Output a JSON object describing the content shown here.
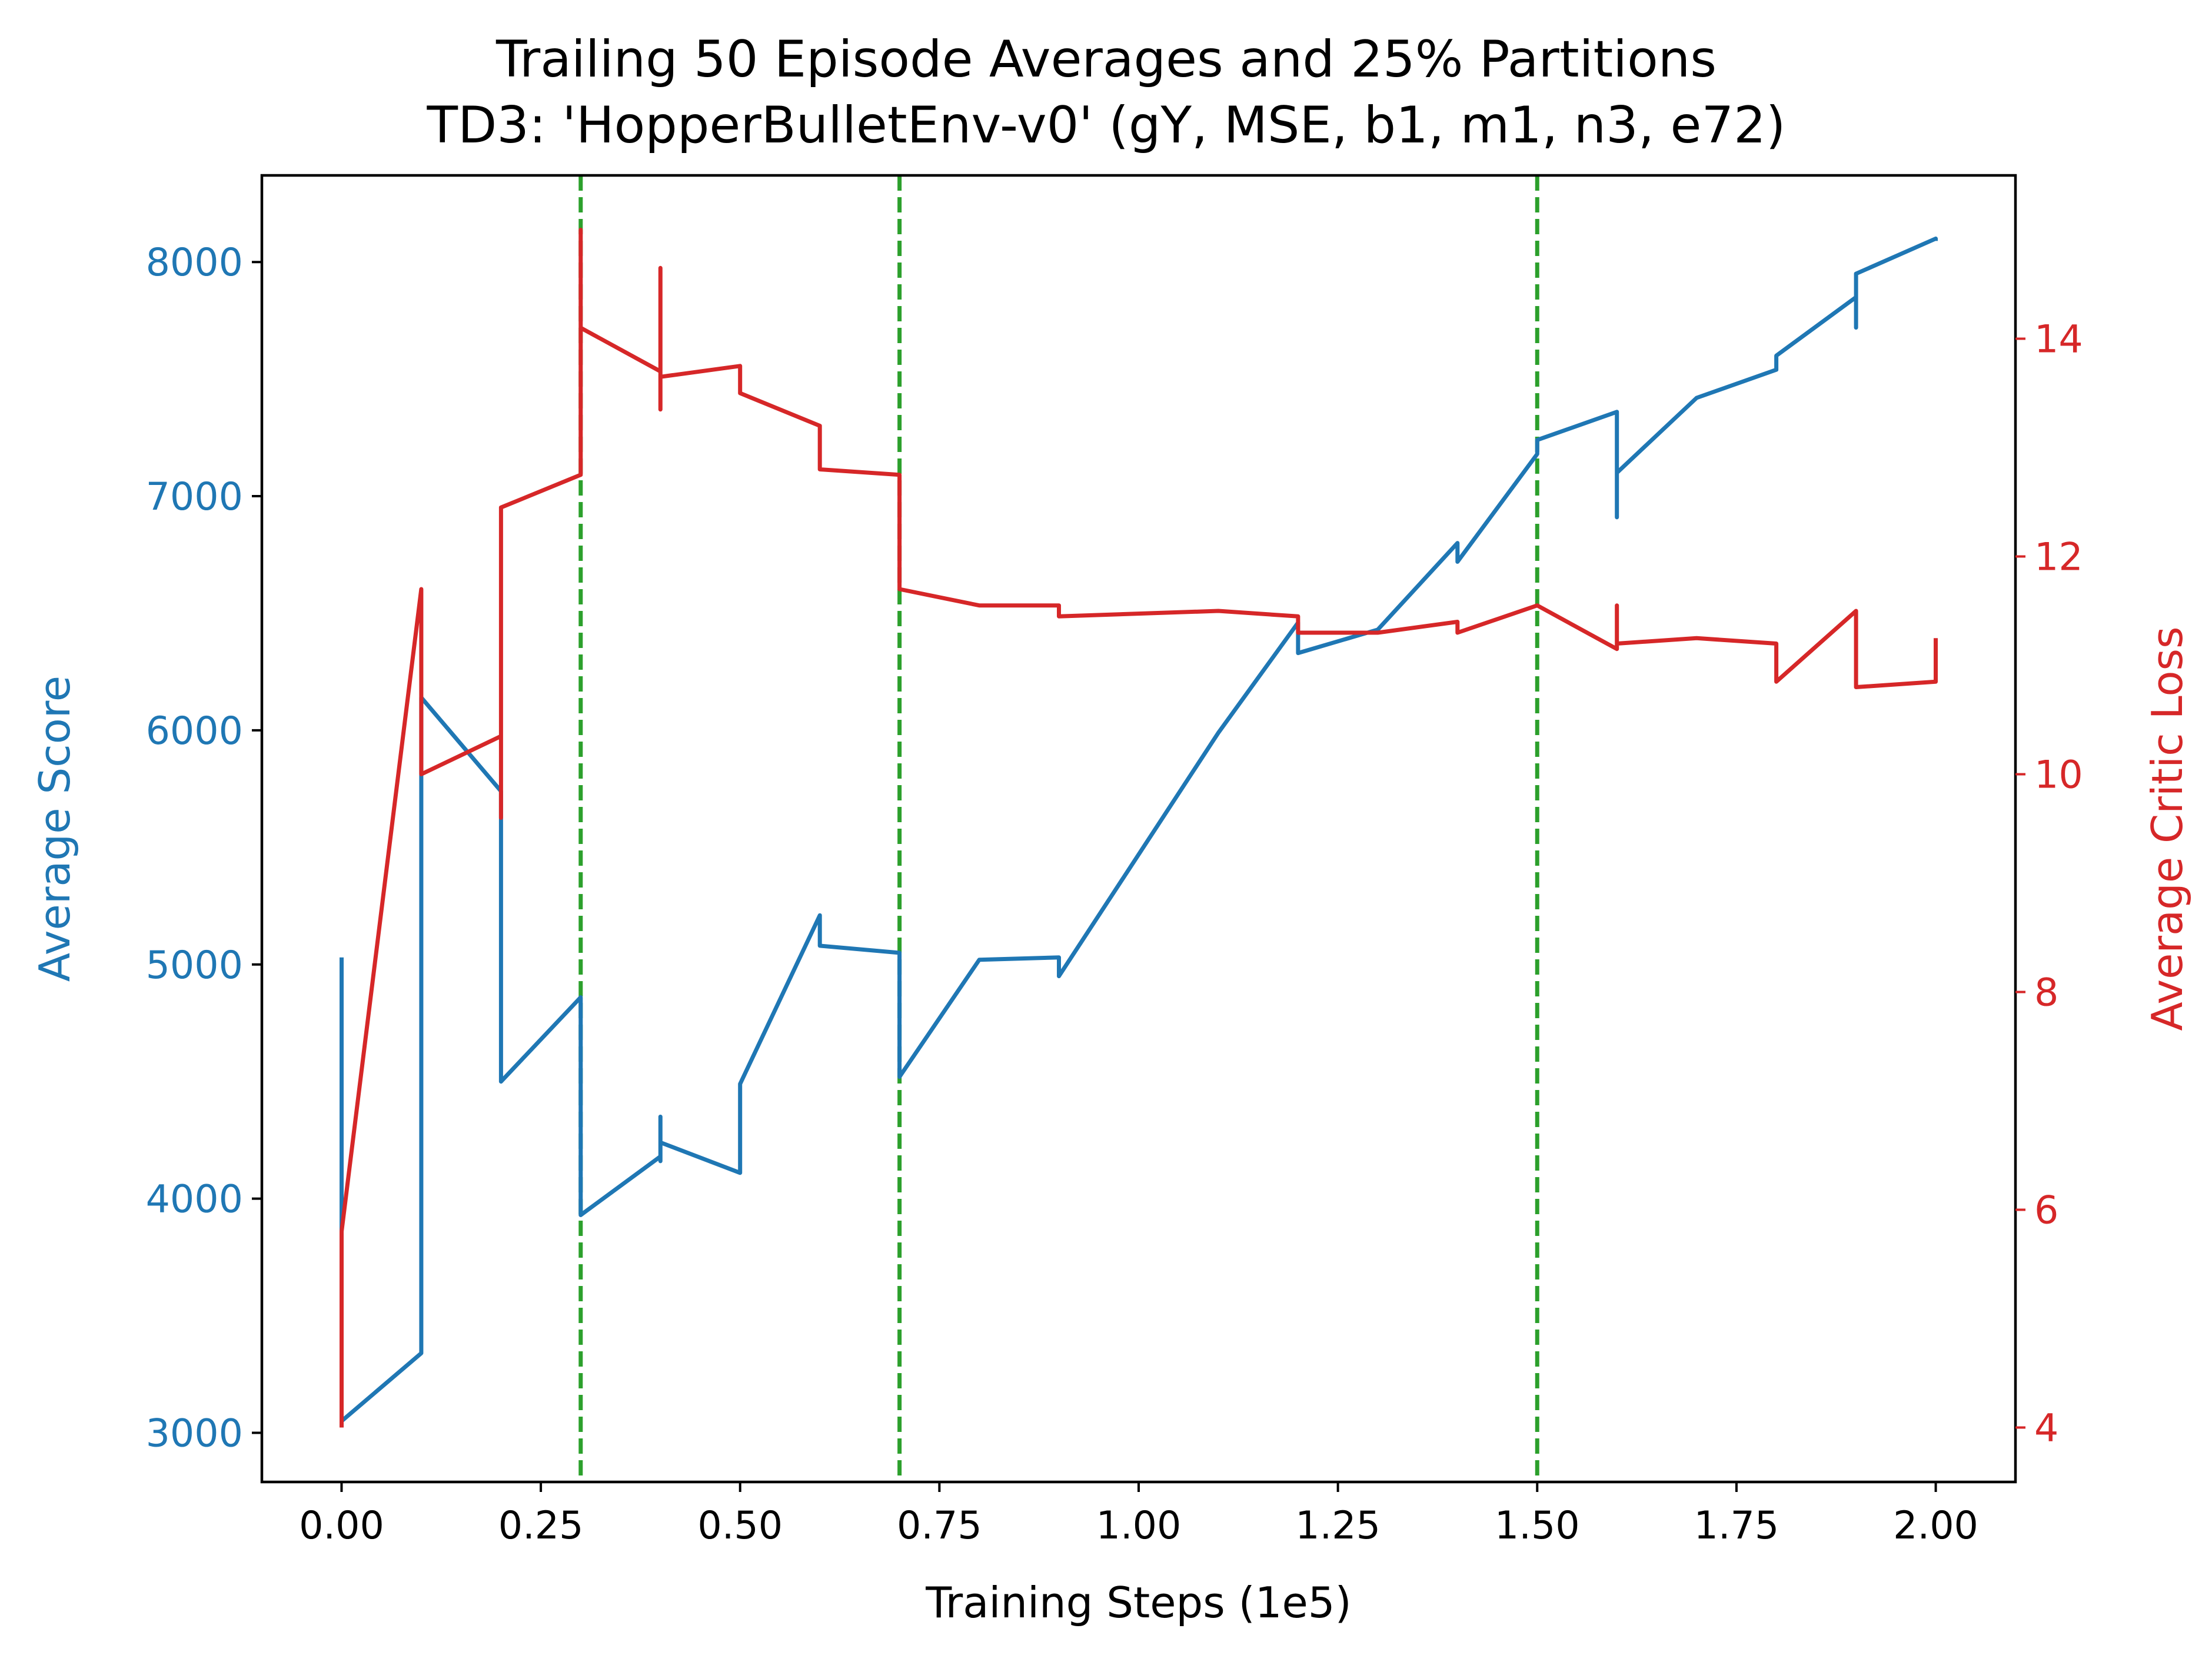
{
  "chart_data": {
    "type": "line",
    "title": "Trailing 50 Episode Averages and 25% Partitions",
    "subtitle": "TD3: 'HopperBulletEnv-v0' (gY, MSE, b1, m1, n3, e72)",
    "xlabel": "Training Steps (1e5)",
    "ylabel_left": "Average Score",
    "ylabel_right": "Average Critic Loss",
    "xlim": [
      -0.1,
      2.1
    ],
    "ylim_left": [
      2790,
      8370
    ],
    "ylim_right": [
      3.5,
      15.5
    ],
    "x_ticks": [
      "0.00",
      "0.25",
      "0.50",
      "0.75",
      "1.00",
      "1.25",
      "1.50",
      "1.75",
      "2.00"
    ],
    "y_ticks_left": [
      "3000",
      "4000",
      "5000",
      "6000",
      "7000",
      "8000"
    ],
    "y_ticks_right": [
      "4",
      "6",
      "8",
      "10",
      "12",
      "14"
    ],
    "grid": false,
    "colors": {
      "score": "#1f77b4",
      "loss": "#d62728",
      "partition": "#2ca02c",
      "axes": "#000000"
    },
    "partitions": [
      0.3,
      0.7,
      1.5
    ],
    "series": [
      {
        "axis": "left",
        "points": [
          [
            0,
            5030
          ],
          [
            0,
            3050
          ],
          [
            0.1,
            3340
          ],
          [
            0.1,
            6140
          ],
          [
            0.2,
            5740
          ],
          [
            0.2,
            5600
          ],
          [
            0.2,
            4500
          ],
          [
            0.3,
            4860
          ],
          [
            0.3,
            3930
          ],
          [
            0.4,
            4180
          ],
          [
            0.4,
            4350
          ],
          [
            0.4,
            4160
          ],
          [
            0.4,
            4240
          ],
          [
            0.5,
            4110
          ],
          [
            0.5,
            4490
          ],
          [
            0.6,
            5210
          ],
          [
            0.6,
            5080
          ],
          [
            0.7,
            5050
          ],
          [
            0.7,
            4520
          ],
          [
            0.8,
            5020
          ],
          [
            0.9,
            5030
          ],
          [
            0.9,
            4950
          ],
          [
            1.0,
            5470
          ],
          [
            1.1,
            5990
          ],
          [
            1.2,
            6460
          ],
          [
            1.2,
            6330
          ],
          [
            1.3,
            6430
          ],
          [
            1.4,
            6800
          ],
          [
            1.4,
            6720
          ],
          [
            1.5,
            7180
          ],
          [
            1.5,
            7240
          ],
          [
            1.6,
            7360
          ],
          [
            1.6,
            6910
          ],
          [
            1.6,
            7100
          ],
          [
            1.7,
            7420
          ],
          [
            1.8,
            7540
          ],
          [
            1.8,
            7600
          ],
          [
            1.9,
            7850
          ],
          [
            1.9,
            7720
          ],
          [
            1.9,
            7950
          ],
          [
            2.0,
            8100
          ],
          [
            2.0,
            8090
          ]
        ]
      },
      {
        "axis": "right",
        "points": [
          [
            0,
            4.0
          ],
          [
            0,
            5.8
          ],
          [
            0.1,
            11.7
          ],
          [
            0.1,
            10.0
          ],
          [
            0.2,
            10.35
          ],
          [
            0.2,
            9.6
          ],
          [
            0.2,
            12.45
          ],
          [
            0.3,
            12.75
          ],
          [
            0.3,
            15.0
          ],
          [
            0.3,
            14.1
          ],
          [
            0.4,
            13.7
          ],
          [
            0.4,
            14.65
          ],
          [
            0.4,
            13.35
          ],
          [
            0.4,
            13.65
          ],
          [
            0.5,
            13.75
          ],
          [
            0.5,
            13.5
          ],
          [
            0.6,
            13.2
          ],
          [
            0.6,
            12.8
          ],
          [
            0.7,
            12.75
          ],
          [
            0.7,
            12.1
          ],
          [
            0.7,
            11.7
          ],
          [
            0.8,
            11.55
          ],
          [
            0.9,
            11.55
          ],
          [
            0.9,
            11.45
          ],
          [
            1.1,
            11.5
          ],
          [
            1.2,
            11.45
          ],
          [
            1.2,
            11.3
          ],
          [
            1.3,
            11.3
          ],
          [
            1.4,
            11.4
          ],
          [
            1.4,
            11.3
          ],
          [
            1.5,
            11.55
          ],
          [
            1.6,
            11.15
          ],
          [
            1.6,
            11.55
          ],
          [
            1.6,
            11.2
          ],
          [
            1.7,
            11.25
          ],
          [
            1.8,
            11.2
          ],
          [
            1.8,
            10.85
          ],
          [
            1.9,
            11.5
          ],
          [
            1.9,
            10.8
          ],
          [
            2.0,
            10.85
          ],
          [
            2.0,
            11.25
          ]
        ]
      }
    ]
  }
}
